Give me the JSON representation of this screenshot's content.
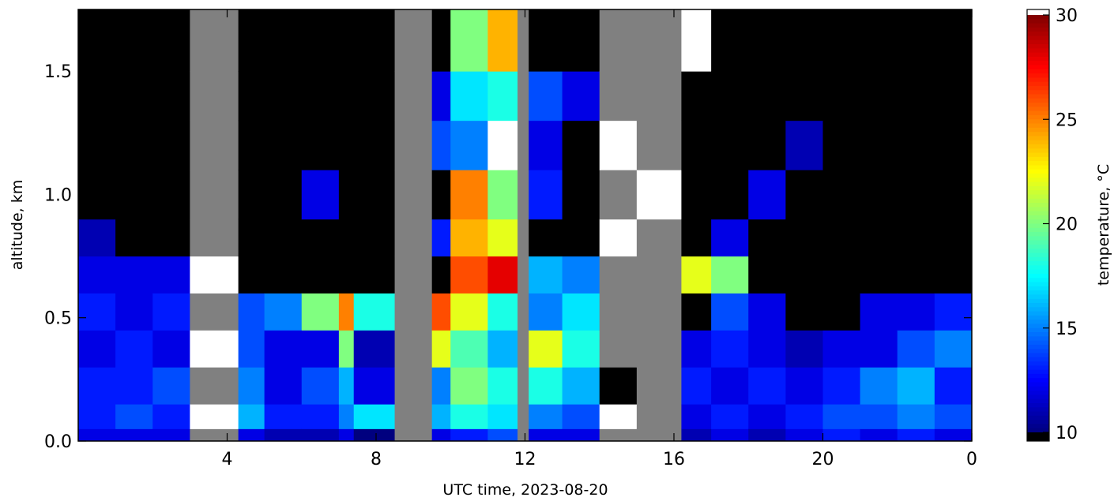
{
  "chart_data": {
    "type": "heatmap",
    "xlabel": "UTC time,  2023-08-20",
    "ylabel": "altitude, km",
    "colorbar_label": "temperature, °C",
    "xlim": [
      0,
      24
    ],
    "xticks": [
      4,
      8,
      12,
      16,
      20,
      {
        "value": 24,
        "label": "0"
      }
    ],
    "ylim": [
      0,
      1.75
    ],
    "yticks": [
      {
        "value": 0,
        "label": "0.0"
      },
      0.5,
      {
        "value": 1,
        "label": "1.0"
      },
      1.5
    ],
    "clim": [
      10,
      30
    ],
    "cticks": [
      10,
      15,
      20,
      25,
      30
    ],
    "colormap": [
      "#00007f",
      "#0000ff",
      "#0080ff",
      "#00ffff",
      "#80ff80",
      "#ffff00",
      "#ff8000",
      "#ff0000",
      "#7f0000"
    ],
    "under_color": "#000000",
    "over_color": "#ffffff",
    "bad_color": "#808080",
    "x_edges": [
      0,
      1,
      2,
      3,
      4.3,
      5,
      6,
      7,
      7.4,
      8.5,
      9.5,
      10,
      11,
      11.8,
      12.1,
      13,
      14,
      15,
      16.2,
      17,
      18,
      19,
      20,
      21,
      22,
      23,
      24
    ],
    "y_edges": [
      0,
      0.05,
      0.15,
      0.3,
      0.45,
      0.6,
      0.75,
      0.9,
      1.1,
      1.3,
      1.5,
      1.75
    ],
    "z": [
      [
        12,
        13,
        13,
        12,
        13,
        12,
        11,
        5,
        5,
        5,
        5
      ],
      [
        12,
        14,
        13,
        13,
        12,
        12,
        5,
        5,
        5,
        5,
        5
      ],
      [
        12,
        13,
        14,
        12,
        13,
        12,
        5,
        5,
        5,
        5,
        5
      ],
      [
        null,
        35,
        null,
        35,
        null,
        35,
        null,
        null,
        null,
        null,
        null
      ],
      [
        12,
        16,
        15,
        14,
        14,
        5,
        5,
        5,
        5,
        5,
        5
      ],
      [
        11,
        13,
        12,
        12,
        15,
        5,
        5,
        5,
        5,
        5,
        5
      ],
      [
        11,
        13,
        14,
        12,
        20,
        5,
        5,
        12,
        5,
        5,
        5
      ],
      [
        12,
        15,
        16,
        20,
        25,
        5,
        5,
        5,
        5,
        5,
        5
      ],
      [
        10,
        17,
        12,
        11,
        18,
        5,
        5,
        5,
        5,
        5,
        5
      ],
      [
        null,
        null,
        null,
        null,
        null,
        null,
        null,
        null,
        null,
        null,
        null
      ],
      [
        12,
        16,
        15,
        22,
        26,
        5,
        13,
        5,
        14,
        12,
        5
      ],
      [
        13,
        18,
        20,
        19,
        22,
        26,
        24,
        25,
        15,
        17,
        20
      ],
      [
        14,
        17,
        18,
        16,
        18,
        28,
        22,
        20,
        35,
        18,
        24
      ],
      [
        null,
        null,
        null,
        null,
        null,
        null,
        null,
        null,
        null,
        null,
        null
      ],
      [
        12,
        15,
        18,
        22,
        15,
        16,
        5,
        13,
        12,
        14,
        5
      ],
      [
        12,
        14,
        16,
        18,
        17,
        15,
        5,
        5,
        5,
        12,
        5
      ],
      [
        null,
        35,
        5,
        null,
        null,
        null,
        35,
        null,
        35,
        null,
        null
      ],
      [
        null,
        null,
        null,
        null,
        null,
        null,
        null,
        35,
        null,
        null,
        null
      ],
      [
        11,
        12,
        13,
        12,
        5,
        22,
        5,
        5,
        5,
        5,
        35
      ],
      [
        12,
        13,
        12,
        13,
        14,
        20,
        12,
        5,
        5,
        5,
        5
      ],
      [
        11,
        12,
        13,
        12,
        12,
        5,
        5,
        12,
        5,
        5,
        5
      ],
      [
        12,
        13,
        12,
        11,
        5,
        5,
        5,
        5,
        11,
        5,
        5
      ],
      [
        13,
        14,
        13,
        12,
        5,
        5,
        5,
        5,
        5,
        5,
        5
      ],
      [
        12,
        14,
        15,
        12,
        12,
        5,
        5,
        5,
        5,
        5,
        5
      ],
      [
        13,
        15,
        16,
        14,
        12,
        5,
        5,
        5,
        5,
        5,
        5
      ],
      [
        12,
        14,
        13,
        15,
        13,
        5,
        5,
        5,
        5,
        5,
        5
      ]
    ]
  }
}
